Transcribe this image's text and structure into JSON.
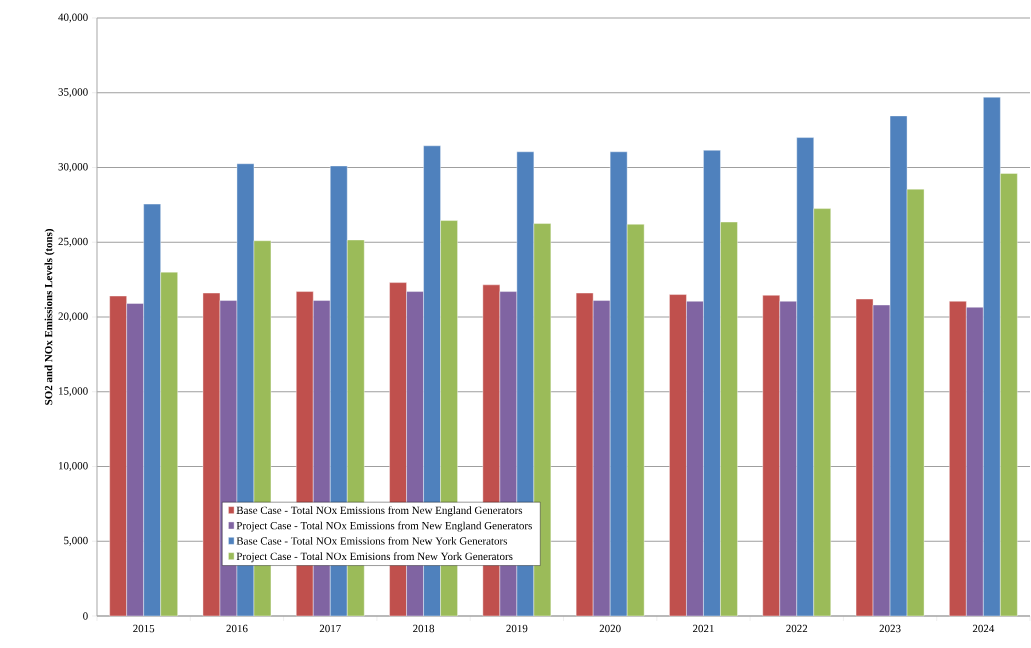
{
  "chart_data": {
    "type": "bar",
    "ylabel": "SO2 and NOx Emissions Levels (tons)",
    "categories": [
      "2015",
      "2016",
      "2017",
      "2018",
      "2019",
      "2020",
      "2021",
      "2022",
      "2023",
      "2024"
    ],
    "series": [
      {
        "name": "Base Case - Total NOx Emissions from New England Generators",
        "color": "#c0504d",
        "values": [
          21400,
          21600,
          21700,
          22300,
          22150,
          21600,
          21500,
          21450,
          21200,
          21050
        ]
      },
      {
        "name": "Project Case - Total NOx Emissions from New England Generators",
        "color": "#8064a2",
        "values": [
          20900,
          21100,
          21100,
          21700,
          21700,
          21100,
          21050,
          21050,
          20800,
          20650
        ]
      },
      {
        "name": "Base Case - Total NOx Emissions from New York Generators",
        "color": "#4f81bd",
        "values": [
          27550,
          30250,
          30100,
          31450,
          31050,
          31050,
          31150,
          32000,
          33450,
          34700
        ]
      },
      {
        "name": "Project Case - Total NOx Emisions from New York Generators",
        "color": "#9bbb59",
        "values": [
          23000,
          25100,
          25150,
          26450,
          26250,
          26200,
          26350,
          27250,
          28550,
          29600
        ]
      }
    ],
    "ylim": [
      0,
      40000
    ],
    "yticks": [
      {
        "value": 0,
        "label": "0"
      },
      {
        "value": 5000,
        "label": "5,000"
      },
      {
        "value": 10000,
        "label": "10,000"
      },
      {
        "value": 15000,
        "label": "15,000"
      },
      {
        "value": 20000,
        "label": "20,000"
      },
      {
        "value": 25000,
        "label": "25,000"
      },
      {
        "value": 30000,
        "label": "30,000"
      },
      {
        "value": 35000,
        "label": "35,000"
      },
      {
        "value": 40000,
        "label": "40,000"
      }
    ],
    "grid": "y",
    "legend": "bottom"
  }
}
